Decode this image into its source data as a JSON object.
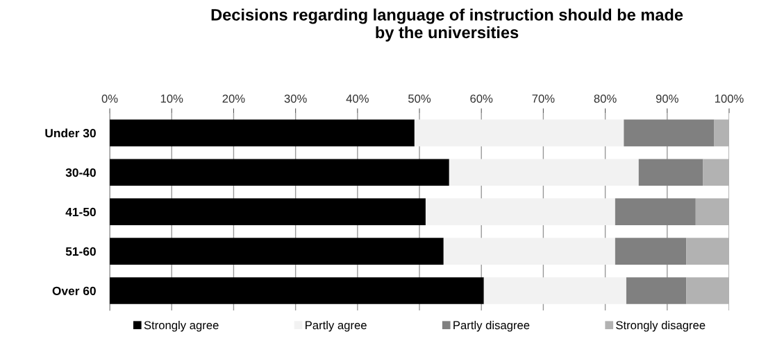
{
  "chart_data": {
    "type": "bar",
    "orientation": "horizontal",
    "stacked": true,
    "title": "Decisions regarding language of instruction should be made\nby the universities",
    "categories": [
      "Under 30",
      "30-40",
      "41-50",
      "51-60",
      "Over 60"
    ],
    "series": [
      {
        "name": "Strongly agree",
        "color": "#000000",
        "values": [
          49.2,
          54.8,
          51.0,
          53.9,
          60.4
        ]
      },
      {
        "name": "Partly agree",
        "color": "#f2f2f2",
        "values": [
          33.8,
          30.6,
          30.6,
          27.7,
          23.0
        ]
      },
      {
        "name": "Partly disagree",
        "color": "#808080",
        "values": [
          14.6,
          10.4,
          13.0,
          11.5,
          9.7
        ]
      },
      {
        "name": "Strongly disagree",
        "color": "#b2b2b2",
        "values": [
          2.4,
          4.2,
          5.4,
          6.9,
          6.9
        ]
      }
    ],
    "xlim": [
      0,
      100
    ],
    "xticks": [
      {
        "value": 0,
        "label": "0%"
      },
      {
        "value": 10,
        "label": "10%"
      },
      {
        "value": 20,
        "label": "20%"
      },
      {
        "value": 30,
        "label": "30%"
      },
      {
        "value": 40,
        "label": "40%"
      },
      {
        "value": 50,
        "label": "50%"
      },
      {
        "value": 60,
        "label": "60%"
      },
      {
        "value": 70,
        "label": "70%"
      },
      {
        "value": 80,
        "label": "80%"
      },
      {
        "value": 90,
        "label": "90%"
      },
      {
        "value": 100,
        "label": "100%"
      }
    ],
    "grid": "x",
    "legend": "bottom"
  }
}
